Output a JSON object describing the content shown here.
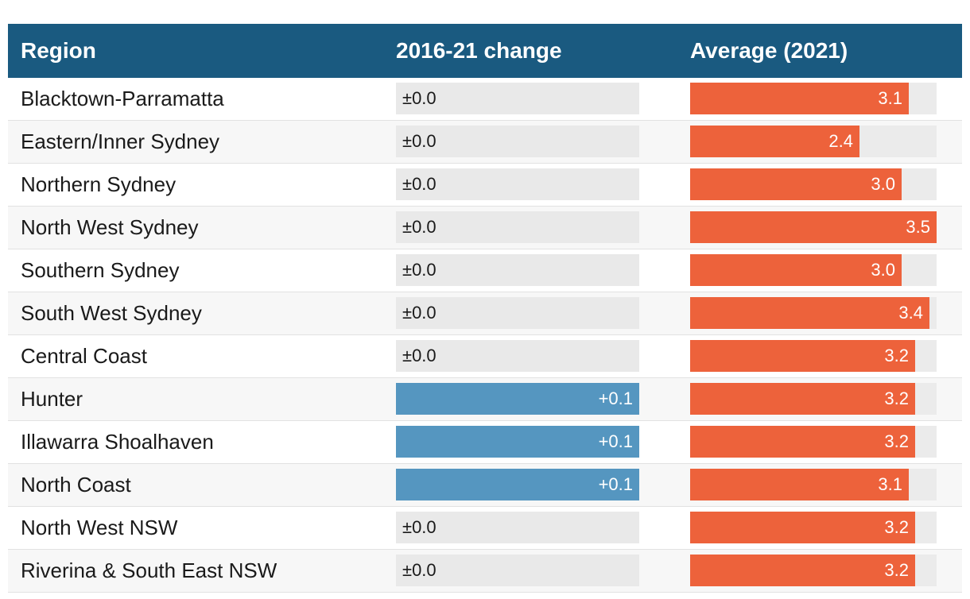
{
  "chart_data": {
    "type": "table",
    "columns": [
      "Region",
      "2016-21 change",
      "Average (2021)"
    ],
    "change_max": 0.1,
    "avg_range": [
      0,
      3.5
    ],
    "colors": {
      "header": "#1a5a80",
      "change_positive": "#5596c0",
      "average": "#ed623b",
      "track": "#e9e9e9"
    },
    "rows": [
      {
        "region": "Blacktown-Parramatta",
        "change": 0.0,
        "change_label": "±0.0",
        "average": 3.1,
        "average_label": "3.1"
      },
      {
        "region": "Eastern/Inner Sydney",
        "change": 0.0,
        "change_label": "±0.0",
        "average": 2.4,
        "average_label": "2.4"
      },
      {
        "region": "Northern Sydney",
        "change": 0.0,
        "change_label": "±0.0",
        "average": 3.0,
        "average_label": "3.0"
      },
      {
        "region": "North West Sydney",
        "change": 0.0,
        "change_label": "±0.0",
        "average": 3.5,
        "average_label": "3.5"
      },
      {
        "region": "Southern Sydney",
        "change": 0.0,
        "change_label": "±0.0",
        "average": 3.0,
        "average_label": "3.0"
      },
      {
        "region": "South West Sydney",
        "change": 0.0,
        "change_label": "±0.0",
        "average": 3.4,
        "average_label": "3.4"
      },
      {
        "region": "Central Coast",
        "change": 0.0,
        "change_label": "±0.0",
        "average": 3.2,
        "average_label": "3.2"
      },
      {
        "region": "Hunter",
        "change": 0.1,
        "change_label": "+0.1",
        "average": 3.2,
        "average_label": "3.2"
      },
      {
        "region": "Illawarra Shoalhaven",
        "change": 0.1,
        "change_label": "+0.1",
        "average": 3.2,
        "average_label": "3.2"
      },
      {
        "region": "North Coast",
        "change": 0.1,
        "change_label": "+0.1",
        "average": 3.1,
        "average_label": "3.1"
      },
      {
        "region": "North West NSW",
        "change": 0.0,
        "change_label": "±0.0",
        "average": 3.2,
        "average_label": "3.2"
      },
      {
        "region": "Riverina & South East NSW",
        "change": 0.0,
        "change_label": "±0.0",
        "average": 3.2,
        "average_label": "3.2"
      }
    ]
  }
}
